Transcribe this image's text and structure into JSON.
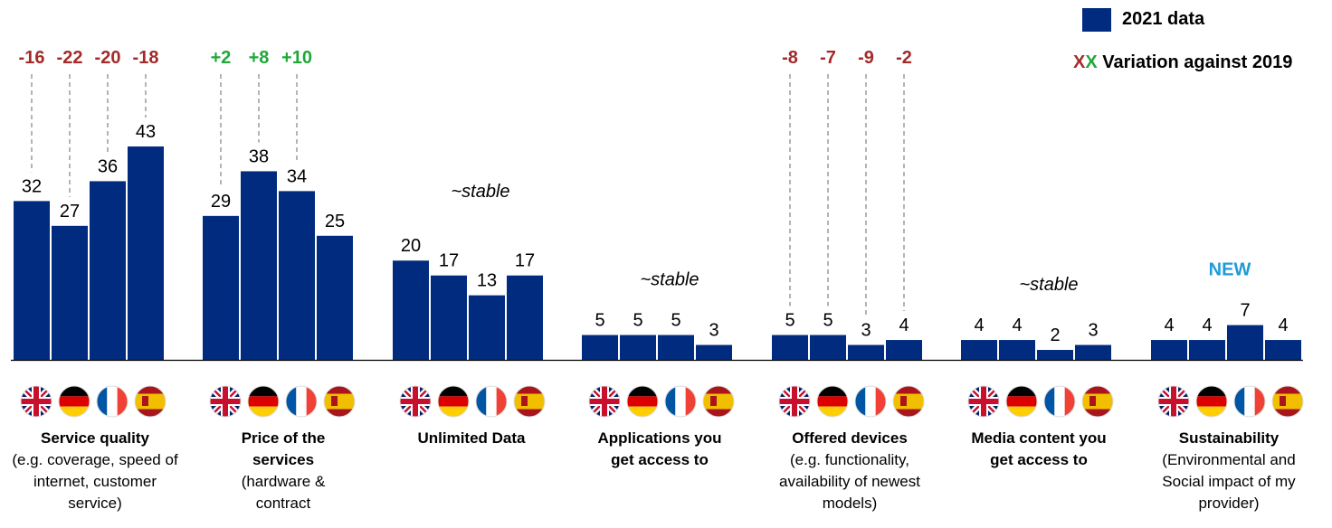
{
  "legend": {
    "series_label": "2021 data",
    "variation_marker_red": "X",
    "variation_marker_green": "X",
    "variation_label": "Variation against 2019"
  },
  "colors": {
    "bar": "#002B7F",
    "negative": "#A52A2A",
    "positive": "#1FA83A",
    "new": "#1E9BD7",
    "dash": "#8C8C8C"
  },
  "chart_data": {
    "type": "bar",
    "countries": [
      "UK",
      "Germany",
      "France",
      "Spain"
    ],
    "ylim": [
      0,
      50
    ],
    "groups": [
      {
        "title": "Service quality",
        "subtitle": "(e.g. coverage, speed of internet, customer service)",
        "values": [
          32,
          27,
          36,
          43
        ],
        "variation": [
          "-16",
          "-22",
          "-20",
          "-18"
        ],
        "note": ""
      },
      {
        "title": "Price of the services",
        "subtitle": "(hardware & contract",
        "values": [
          29,
          38,
          34,
          25
        ],
        "variation": [
          "+2",
          "+8",
          "+10",
          ""
        ],
        "note": ""
      },
      {
        "title": "Unlimited Data",
        "subtitle": "",
        "values": [
          20,
          17,
          13,
          17
        ],
        "variation": [
          "",
          "",
          "",
          ""
        ],
        "note": "~stable"
      },
      {
        "title": "Applications you get access to",
        "subtitle": "",
        "values": [
          5,
          5,
          5,
          3
        ],
        "variation": [
          "",
          "",
          "",
          ""
        ],
        "note": "~stable"
      },
      {
        "title": "Offered devices",
        "subtitle": "(e.g. functionality, availability of newest models)",
        "values": [
          5,
          5,
          3,
          4
        ],
        "variation": [
          "-8",
          "-7",
          "-9",
          "-2"
        ],
        "note": ""
      },
      {
        "title": "Media content you get access to",
        "subtitle": "",
        "values": [
          4,
          4,
          2,
          3
        ],
        "variation": [
          "",
          "",
          "",
          ""
        ],
        "note": "~stable"
      },
      {
        "title": "Sustainability",
        "subtitle": "(Environmental and Social impact of my provider)",
        "values": [
          4,
          4,
          7,
          4
        ],
        "variation": [
          "",
          "",
          "",
          ""
        ],
        "note": "NEW"
      }
    ]
  }
}
